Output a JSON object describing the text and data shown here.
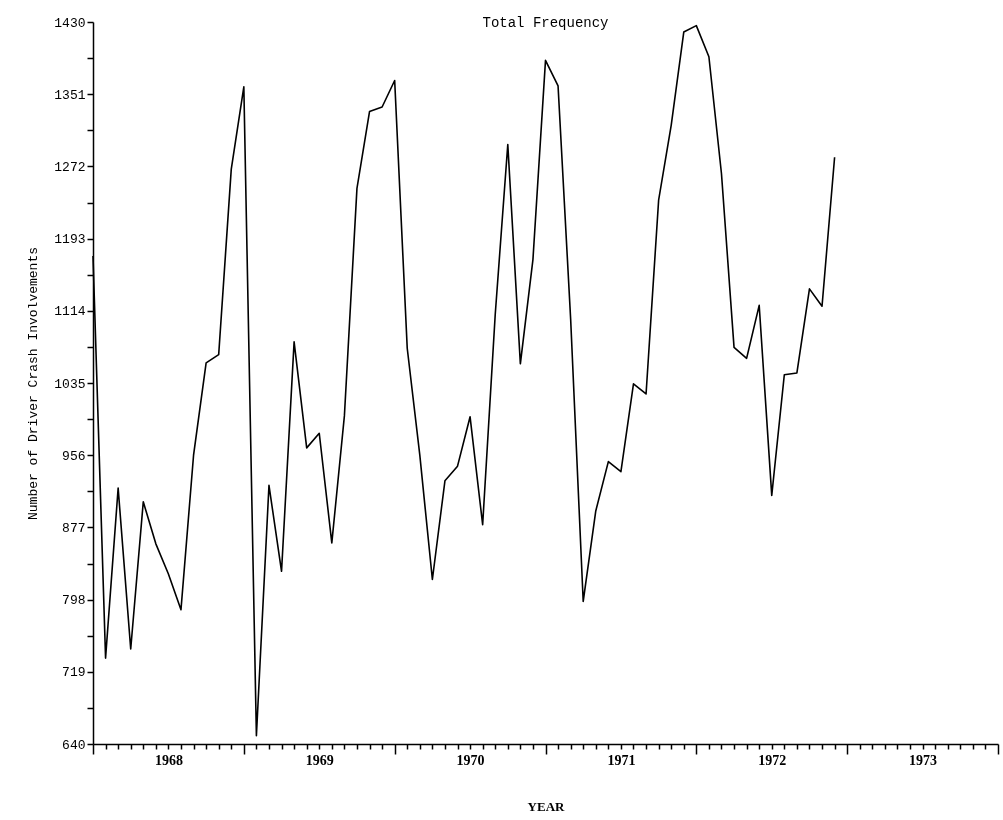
{
  "chart_data": {
    "type": "line",
    "title": "Total Frequency",
    "xlabel": "YEAR",
    "ylabel": "Number of Driver Crash Involvements",
    "x": [
      1968,
      1968.0833,
      1968.1667,
      1968.25,
      1968.3333,
      1968.4167,
      1968.5,
      1968.5833,
      1968.6667,
      1968.75,
      1968.8333,
      1968.9167,
      1969,
      1969.0833,
      1969.1667,
      1969.25,
      1969.3333,
      1969.4167,
      1969.5,
      1969.5833,
      1969.6667,
      1969.75,
      1969.8333,
      1969.9167,
      1970,
      1970.0833,
      1970.1667,
      1970.25,
      1970.3333,
      1970.4167,
      1970.5,
      1970.5833,
      1970.6667,
      1970.75,
      1970.8333,
      1970.9167,
      1971,
      1971.0833,
      1971.1667,
      1971.25,
      1971.3333,
      1971.4167,
      1971.5,
      1971.5833,
      1971.6667,
      1971.75,
      1971.8333,
      1971.9167,
      1972,
      1972.0833,
      1972.1667,
      1972.25,
      1972.3333,
      1972.4167,
      1972.5,
      1972.5833,
      1972.6667,
      1972.75,
      1972.8333,
      1972.9167
    ],
    "series": [
      {
        "color": "#000000",
        "values": [
          1174,
          734,
          920,
          744,
          905,
          859,
          826,
          787,
          956,
          1057,
          1066,
          1269,
          1359,
          649,
          923,
          829,
          1080,
          964,
          980,
          860,
          999,
          1248,
          1332,
          1337,
          1366,
          1073,
          956,
          820,
          928,
          944,
          998,
          880,
          1110,
          1296,
          1056,
          1170,
          1388,
          1360,
          1105,
          796,
          895,
          949,
          938,
          1034,
          1023,
          1235,
          1317,
          1419,
          1426,
          1392,
          1264,
          1074,
          1062,
          1120,
          912,
          1044,
          1046,
          1138,
          1119,
          1282
        ]
      }
    ],
    "xlim": [
      1968,
      1974
    ],
    "xticks": [
      {
        "value": 1968,
        "label": null
      },
      {
        "value": 1968.0833,
        "label": null
      },
      {
        "value": 1968.1667,
        "label": null
      },
      {
        "value": 1968.25,
        "label": null
      },
      {
        "value": 1968.3333,
        "label": null
      },
      {
        "value": 1968.4167,
        "label": null
      },
      {
        "value": 1968.5,
        "label": "1968"
      },
      {
        "value": 1968.5833,
        "label": null
      },
      {
        "value": 1968.6667,
        "label": null
      },
      {
        "value": 1968.75,
        "label": null
      },
      {
        "value": 1968.8333,
        "label": null
      },
      {
        "value": 1968.9167,
        "label": null
      },
      {
        "value": 1969,
        "label": null
      },
      {
        "value": 1969.0833,
        "label": null
      },
      {
        "value": 1969.1667,
        "label": null
      },
      {
        "value": 1969.25,
        "label": null
      },
      {
        "value": 1969.3333,
        "label": null
      },
      {
        "value": 1969.4167,
        "label": null
      },
      {
        "value": 1969.5,
        "label": "1969"
      },
      {
        "value": 1969.5833,
        "label": null
      },
      {
        "value": 1969.6667,
        "label": null
      },
      {
        "value": 1969.75,
        "label": null
      },
      {
        "value": 1969.8333,
        "label": null
      },
      {
        "value": 1969.9167,
        "label": null
      },
      {
        "value": 1970,
        "label": null
      },
      {
        "value": 1970.0833,
        "label": null
      },
      {
        "value": 1970.1667,
        "label": null
      },
      {
        "value": 1970.25,
        "label": null
      },
      {
        "value": 1970.3333,
        "label": null
      },
      {
        "value": 1970.4167,
        "label": null
      },
      {
        "value": 1970.5,
        "label": "1970"
      },
      {
        "value": 1970.5833,
        "label": null
      },
      {
        "value": 1970.6667,
        "label": null
      },
      {
        "value": 1970.75,
        "label": null
      },
      {
        "value": 1970.8333,
        "label": null
      },
      {
        "value": 1970.9167,
        "label": null
      },
      {
        "value": 1971,
        "label": null
      },
      {
        "value": 1971.0833,
        "label": null
      },
      {
        "value": 1971.1667,
        "label": null
      },
      {
        "value": 1971.25,
        "label": null
      },
      {
        "value": 1971.3333,
        "label": null
      },
      {
        "value": 1971.4167,
        "label": null
      },
      {
        "value": 1971.5,
        "label": "1971"
      },
      {
        "value": 1971.5833,
        "label": null
      },
      {
        "value": 1971.6667,
        "label": null
      },
      {
        "value": 1971.75,
        "label": null
      },
      {
        "value": 1971.8333,
        "label": null
      },
      {
        "value": 1971.9167,
        "label": null
      },
      {
        "value": 1972,
        "label": null
      },
      {
        "value": 1972.0833,
        "label": null
      },
      {
        "value": 1972.1667,
        "label": null
      },
      {
        "value": 1972.25,
        "label": null
      },
      {
        "value": 1972.3333,
        "label": null
      },
      {
        "value": 1972.4167,
        "label": null
      },
      {
        "value": 1972.5,
        "label": "1972"
      },
      {
        "value": 1972.5833,
        "label": null
      },
      {
        "value": 1972.6667,
        "label": null
      },
      {
        "value": 1972.75,
        "label": null
      },
      {
        "value": 1972.8333,
        "label": null
      },
      {
        "value": 1972.9167,
        "label": null
      },
      {
        "value": 1973,
        "label": null
      },
      {
        "value": 1973.0833,
        "label": null
      },
      {
        "value": 1973.1667,
        "label": null
      },
      {
        "value": 1973.25,
        "label": null
      },
      {
        "value": 1973.3333,
        "label": null
      },
      {
        "value": 1973.4167,
        "label": null
      },
      {
        "value": 1973.5,
        "label": "1973"
      },
      {
        "value": 1973.5833,
        "label": null
      },
      {
        "value": 1973.6667,
        "label": null
      },
      {
        "value": 1973.75,
        "label": null
      },
      {
        "value": 1973.8333,
        "label": null
      },
      {
        "value": 1973.9167,
        "label": null
      },
      {
        "value": 1974,
        "label": null
      }
    ],
    "ylim": [
      640,
      1430
    ],
    "yticks": [
      640,
      {
        "value": 679.5,
        "label": null
      },
      719,
      {
        "value": 758.5,
        "label": null
      },
      798,
      {
        "value": 837.5,
        "label": null
      },
      877,
      {
        "value": 916.5,
        "label": null
      },
      956,
      {
        "value": 995.5,
        "label": null
      },
      1035,
      {
        "value": 1074.5,
        "label": null
      },
      1114,
      {
        "value": 1153.5,
        "label": null
      },
      1193,
      {
        "value": 1232.5,
        "label": null
      },
      1272,
      {
        "value": 1311.5,
        "label": null
      },
      1351,
      {
        "value": 1390.5,
        "label": null
      },
      1430
    ],
    "grid": false,
    "marker": "none",
    "line_style": "solid"
  }
}
